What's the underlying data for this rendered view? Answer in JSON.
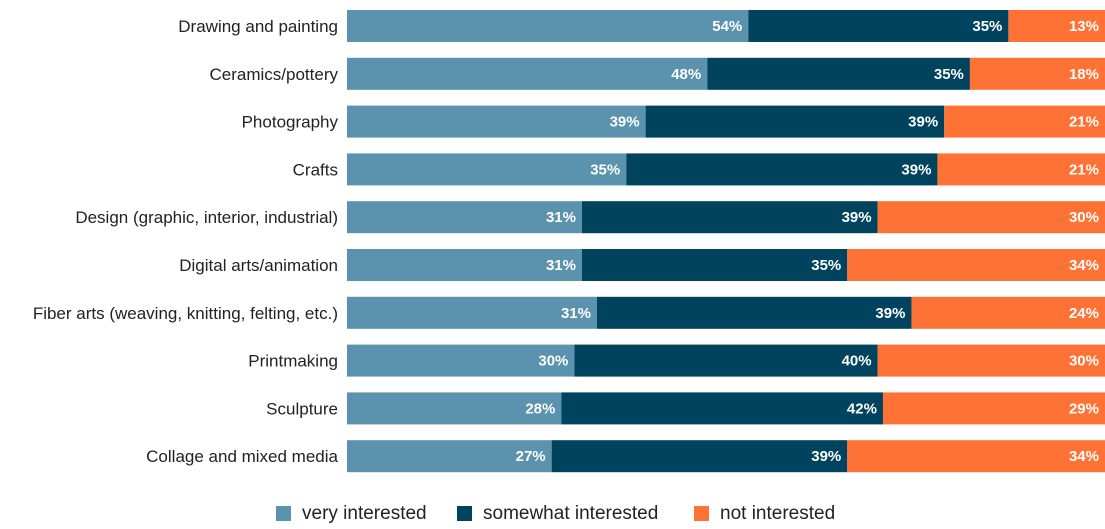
{
  "chart_data": {
    "type": "bar",
    "orientation": "horizontal",
    "stacked": true,
    "categories": [
      "Drawing and painting",
      "Ceramics/pottery",
      "Photography",
      "Crafts",
      "Design (graphic, interior, industrial)",
      "Digital arts/animation",
      "Fiber arts (weaving, knitting, felting, etc.)",
      "Printmaking",
      "Sculpture",
      "Collage and mixed media"
    ],
    "series": [
      {
        "name": "very interested",
        "color": "#5b92ae",
        "values": [
          54,
          48,
          39,
          35,
          31,
          31,
          31,
          30,
          28,
          27
        ],
        "labels": [
          "54%",
          "48%",
          "39%",
          "35%",
          "31%",
          "31%",
          "31%",
          "30%",
          "28%",
          "27%"
        ]
      },
      {
        "name": "somewhat interested",
        "color": "#00435e",
        "values": [
          35,
          35,
          39,
          39,
          39,
          35,
          39,
          40,
          42,
          39
        ],
        "labels": [
          "35%",
          "35%",
          "39%",
          "39%",
          "39%",
          "35%",
          "39%",
          "40%",
          "42%",
          "39%"
        ]
      },
      {
        "name": "not interested",
        "color": "#ff7236",
        "values": [
          13,
          18,
          21,
          21,
          30,
          34,
          24,
          30,
          29,
          34
        ],
        "labels": [
          "13%",
          "18%",
          "21%",
          "21%",
          "30%",
          "34%",
          "24%",
          "30%",
          "29%",
          "34%"
        ]
      }
    ],
    "legend_position": "bottom",
    "grid": false
  }
}
